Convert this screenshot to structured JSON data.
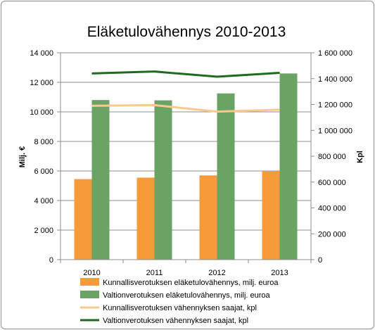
{
  "chart_data": {
    "type": "bar",
    "title": "Eläketulovähennys 2010-2013",
    "ylabel": "Milj. €",
    "y2label": "Kpl",
    "categories": [
      "2010",
      "2011",
      "2012",
      "2013"
    ],
    "ylim": [
      0,
      14000
    ],
    "y_ticks": [
      "0",
      "2 000",
      "4 000",
      "6 000",
      "8 000",
      "10 000",
      "12 000",
      "14 000"
    ],
    "y2lim": [
      0,
      1600000
    ],
    "y2_ticks": [
      "0",
      "200 000",
      "400 000",
      "600 000",
      "800 000",
      "1 000 000",
      "1 200 000",
      "1 400 000",
      "1 600 000"
    ],
    "grid": true,
    "legend_position": "bottom",
    "series": [
      {
        "name": "Kunnallisverotuksen eläketulovähennys, milj. euroa",
        "type": "bar",
        "axis": "left",
        "color": "#f79a3a",
        "values": [
          5450,
          5550,
          5700,
          6000
        ]
      },
      {
        "name": "Valtionverotuksen eläketulovähennys, milj. euroa",
        "type": "bar",
        "axis": "left",
        "color": "#6aa364",
        "values": [
          10800,
          10780,
          11250,
          12600
        ]
      },
      {
        "name": "Kunnallisverotuksen vähennyksen saajat, kpl",
        "type": "line",
        "axis": "right",
        "color": "#fac98e",
        "values": [
          1190000,
          1195000,
          1145000,
          1160000
        ]
      },
      {
        "name": "Valtionverotuksen vähennyksen saajat, kpl",
        "type": "line",
        "axis": "right",
        "color": "#1e6b1e",
        "values": [
          1440000,
          1455000,
          1415000,
          1445000
        ]
      }
    ]
  }
}
